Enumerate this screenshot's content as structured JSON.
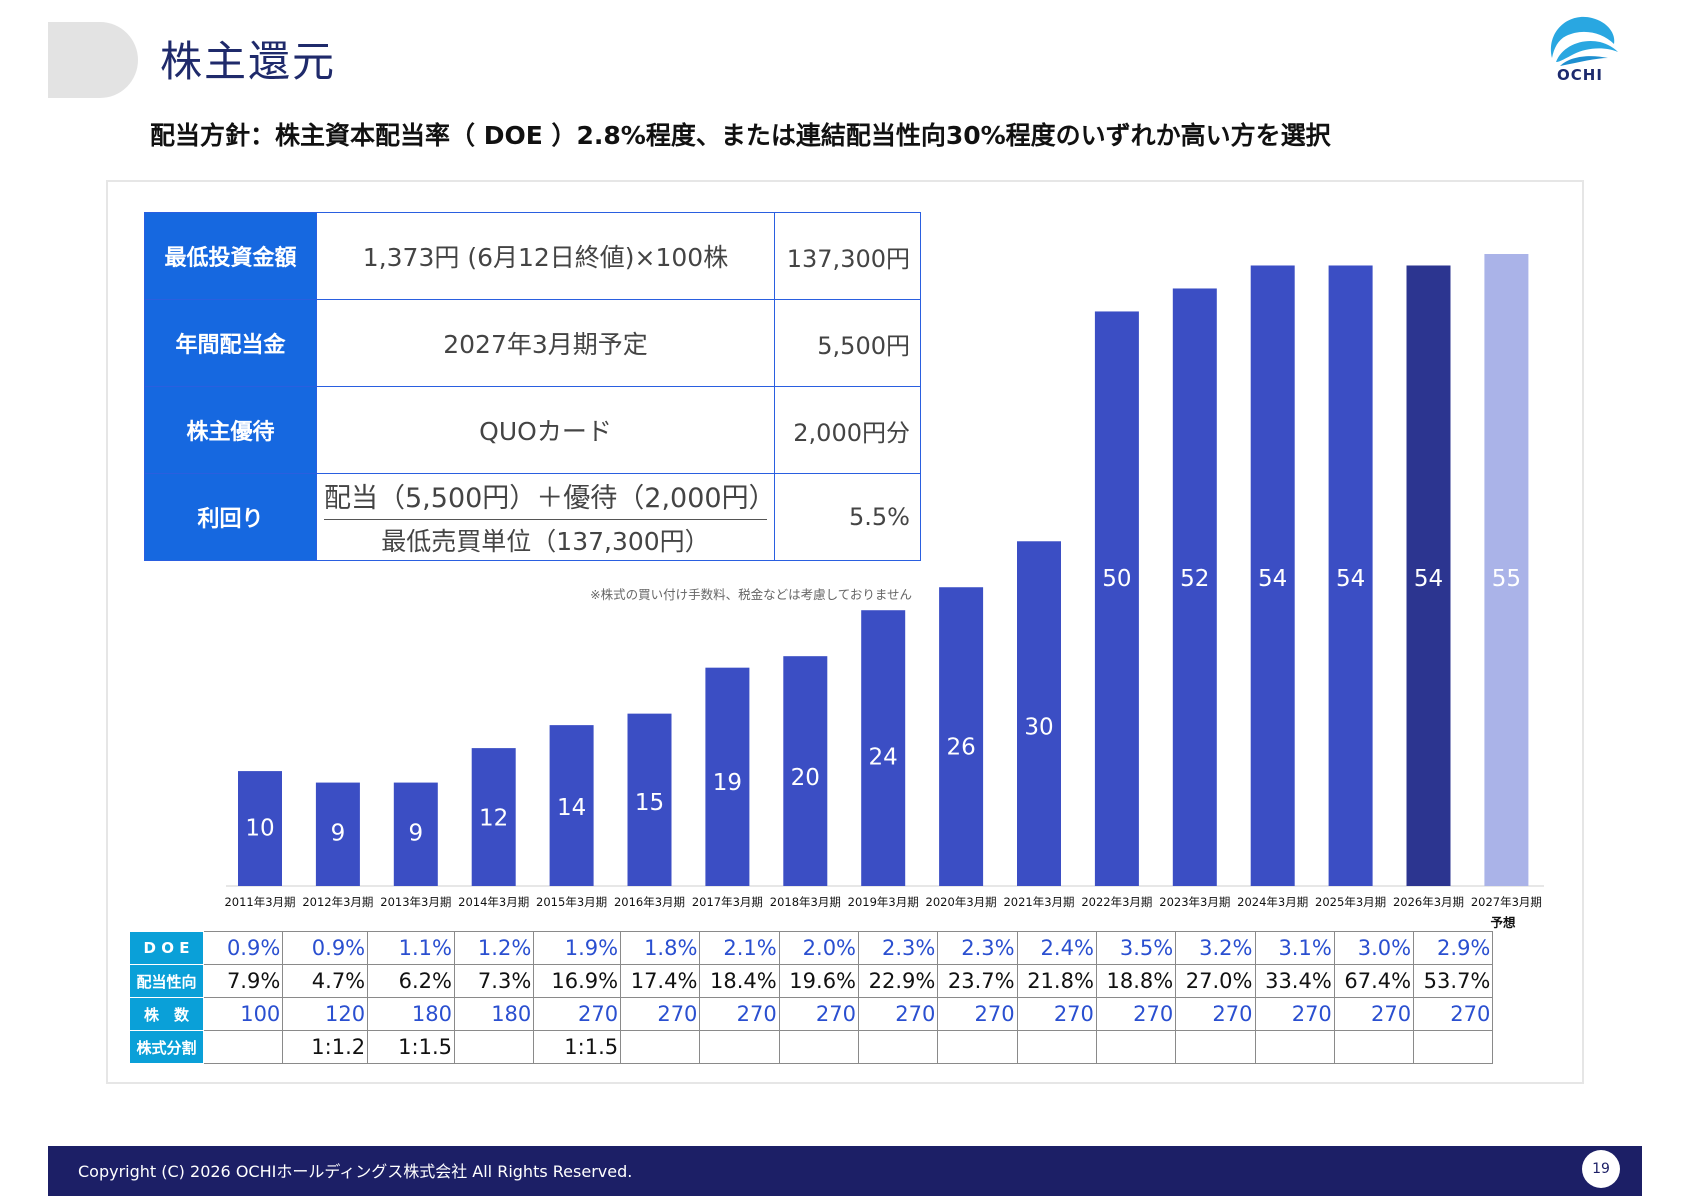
{
  "page": {
    "title": "株主還元",
    "page_number": "19"
  },
  "logo": {
    "text": "OCHI"
  },
  "policy": {
    "text": "配当方針：株主資本配当率（ DOE ）2.8%程度、または連結配当性向30%程度のいずれか高い方を選択"
  },
  "investment_table": {
    "rows": [
      {
        "header": "最低投資金額",
        "description": "1,373円 (6月12日終値)×100株",
        "value": "137,300円"
      },
      {
        "header": "年間配当金",
        "description": "2027年3月期予定",
        "value": "5,500円"
      },
      {
        "header": "株主優待",
        "description": "QUOカード",
        "value": "2,000円分"
      }
    ],
    "yield": {
      "header": "利回り",
      "numerator": "配当（5,500円）＋優待（2,000円）",
      "denominator": "最低売買単位（137,300円）",
      "value": "5.5%"
    },
    "note": "※株式の買い付け手数料、税金などは考慮しておりません"
  },
  "chart_data": {
    "type": "bar",
    "categories": [
      "2011年3月期",
      "2012年3月期",
      "2013年3月期",
      "2014年3月期",
      "2015年3月期",
      "2016年3月期",
      "2017年3月期",
      "2018年3月期",
      "2019年3月期",
      "2020年3月期",
      "2021年3月期",
      "2022年3月期",
      "2023年3月期",
      "2024年3月期",
      "2025年3月期",
      "2026年3月期",
      "2027年3月期"
    ],
    "category_sublabels": {
      "2027年3月期": "予想"
    },
    "values": [
      10,
      9,
      9,
      12,
      14,
      15,
      19,
      20,
      24,
      26,
      30,
      50,
      52,
      54,
      54,
      54,
      55
    ],
    "ylim": [
      0,
      55
    ],
    "bar_colors": [
      "#3b4ec4",
      "#3b4ec4",
      "#3b4ec4",
      "#3b4ec4",
      "#3b4ec4",
      "#3b4ec4",
      "#3b4ec4",
      "#3b4ec4",
      "#3b4ec4",
      "#3b4ec4",
      "#3b4ec4",
      "#3b4ec4",
      "#3b4ec4",
      "#3b4ec4",
      "#3b4ec4",
      "#2c3590",
      "#aab3e8"
    ],
    "grid": false,
    "title": "",
    "xlabel": "",
    "ylabel": ""
  },
  "stats_table": {
    "rows": [
      {
        "label": "D O E",
        "color": "blue",
        "values": [
          "0.9%",
          "0.9%",
          "1.1%",
          "1.2%",
          "1.9%",
          "1.8%",
          "2.1%",
          "2.0%",
          "2.3%",
          "2.3%",
          "2.4%",
          "3.5%",
          "3.2%",
          "3.1%",
          "3.0%",
          "2.9%"
        ]
      },
      {
        "label": "配当性向",
        "color": "black",
        "values": [
          "7.9%",
          "4.7%",
          "6.2%",
          "7.3%",
          "16.9%",
          "17.4%",
          "18.4%",
          "19.6%",
          "22.9%",
          "23.7%",
          "21.8%",
          "18.8%",
          "27.0%",
          "33.4%",
          "67.4%",
          "53.7%"
        ]
      },
      {
        "label": "株　数",
        "color": "blue",
        "values": [
          "100",
          "120",
          "180",
          "180",
          "270",
          "270",
          "270",
          "270",
          "270",
          "270",
          "270",
          "270",
          "270",
          "270",
          "270",
          "270"
        ]
      },
      {
        "label": "株式分割",
        "color": "black",
        "values": [
          "",
          "1:1.2",
          "1:1.5",
          "",
          "1:1.5",
          "",
          "",
          "",
          "",
          "",
          "",
          "",
          "",
          "",
          "",
          ""
        ]
      }
    ]
  },
  "footer": {
    "copyright": "Copyright (C) 2026 OCHIホールディングス株式会社 All Rights Reserved."
  }
}
